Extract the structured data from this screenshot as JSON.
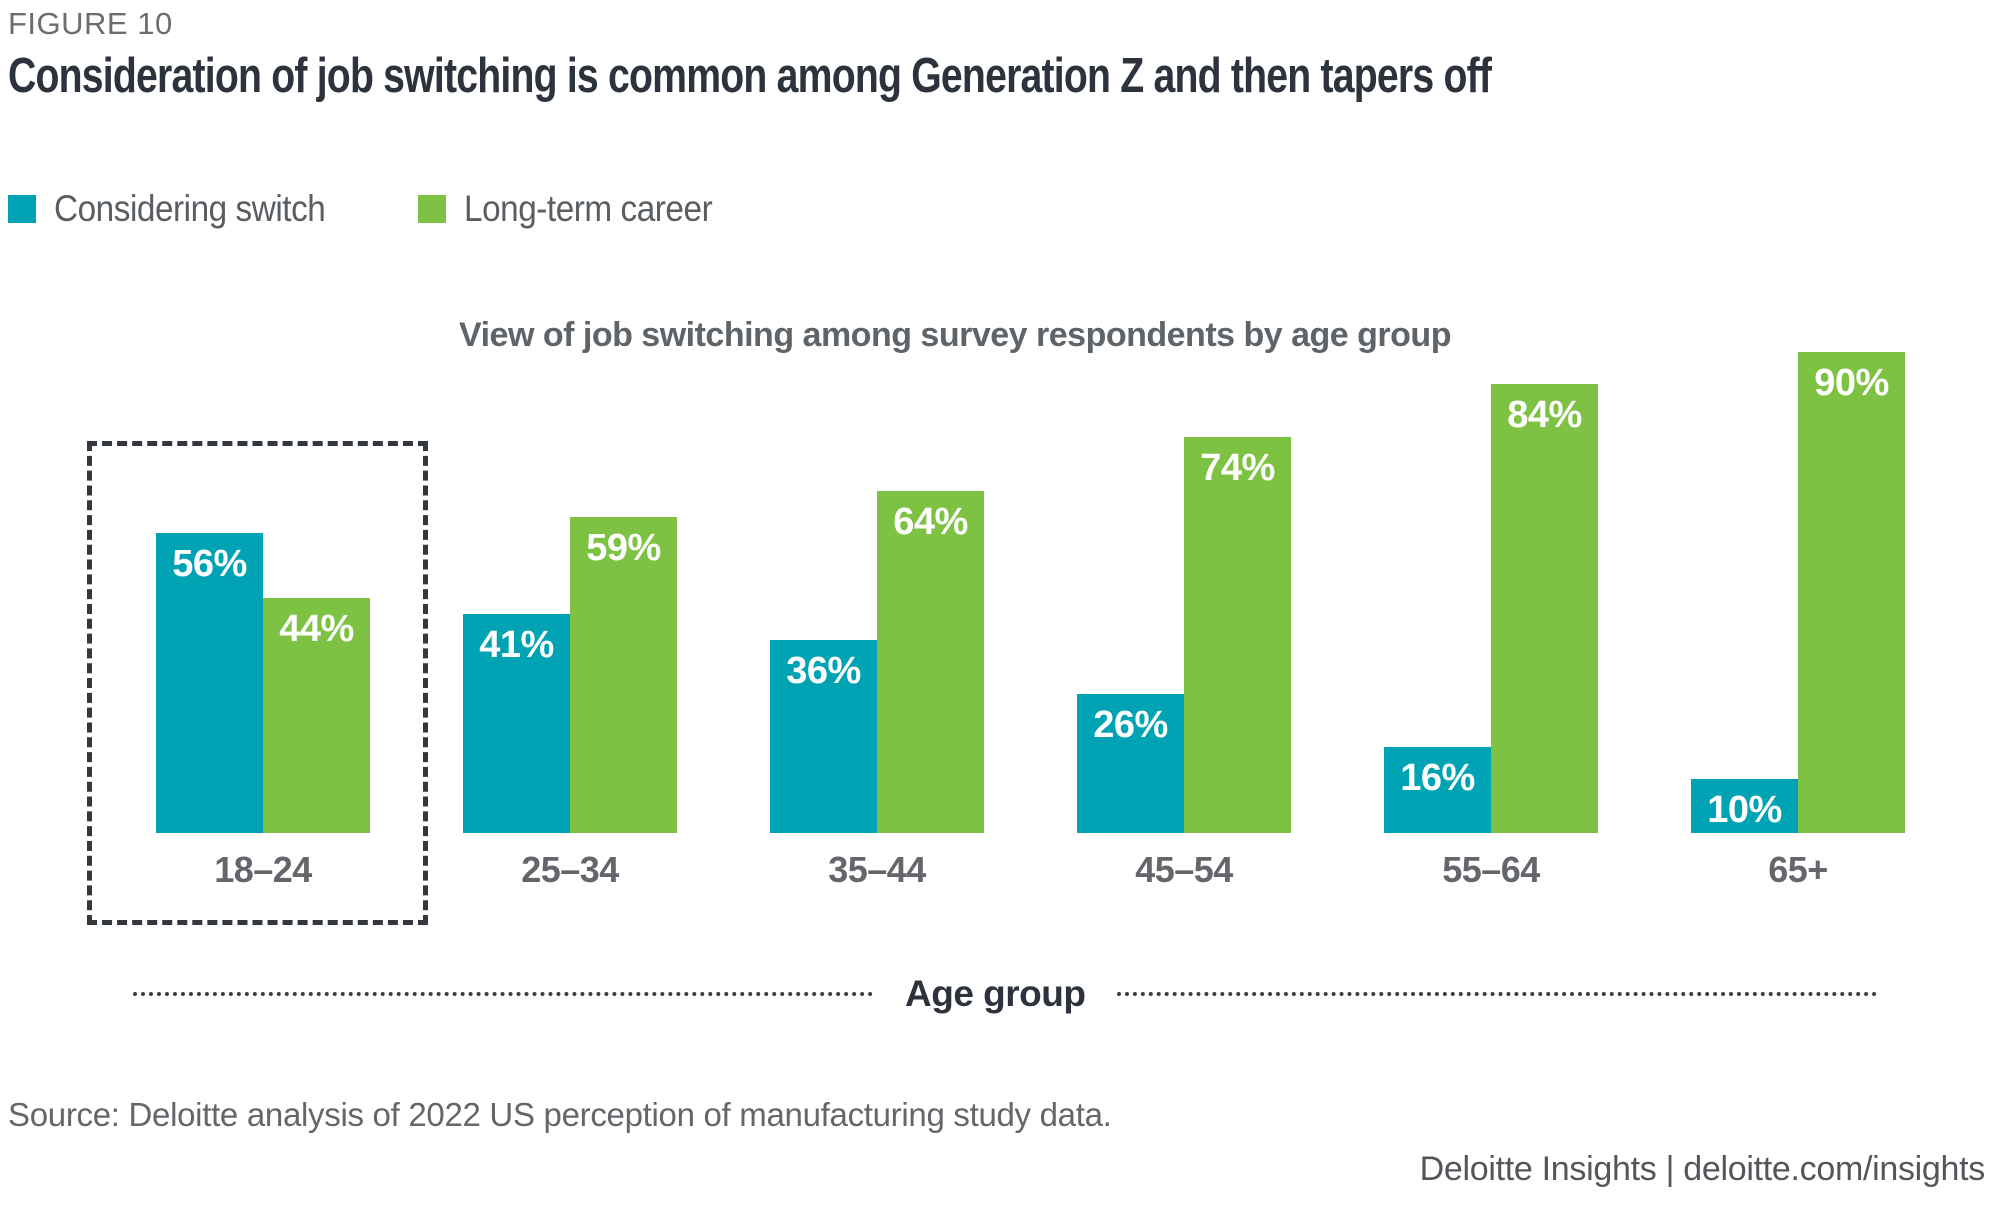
{
  "figure_label": "FIGURE 10",
  "title": "Consideration of job switching is common among Generation Z and then tapers off",
  "legend": {
    "items": [
      {
        "label": "Considering switch",
        "color": "#00A3B4"
      },
      {
        "label": "Long-term career",
        "color": "#7DC242"
      }
    ]
  },
  "chart_data": {
    "type": "bar",
    "title": "View of job switching among survey respondents by age group",
    "categories": [
      "18–24",
      "25–34",
      "35–44",
      "45–54",
      "55–64",
      "65+"
    ],
    "series": [
      {
        "name": "Considering switch",
        "color": "#00A3B4",
        "values": [
          56,
          41,
          36,
          26,
          16,
          10
        ]
      },
      {
        "name": "Long-term career",
        "color": "#7DC242",
        "values": [
          44,
          59,
          64,
          74,
          84,
          90
        ]
      }
    ],
    "value_format": "percent",
    "xlabel": "Age group",
    "ylabel": "",
    "ylim": [
      0,
      100
    ],
    "grid": false,
    "legend_position": "top-left",
    "highlight": {
      "category": "18–24",
      "style": "dashed-box"
    }
  },
  "source": "Source: Deloitte analysis of 2022 US perception of manufacturing study data.",
  "footer": "Deloitte Insights | deloitte.com/insights"
}
